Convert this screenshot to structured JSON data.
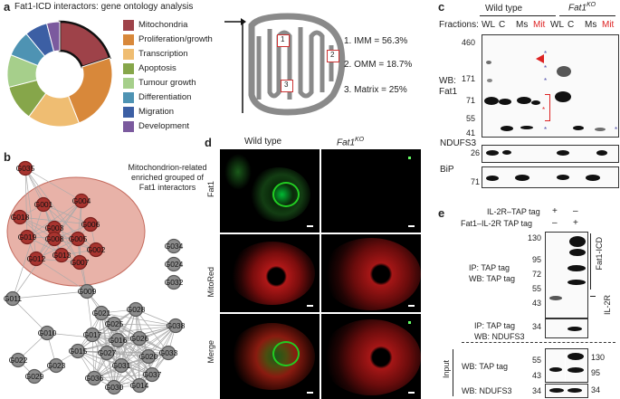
{
  "panel_a": {
    "label": "a",
    "title": "Fat1-ICD interactors: gene ontology analysis",
    "chart_data": {
      "type": "pie",
      "categories": [
        "Mitochondria",
        "Proliferation/growth",
        "Transcription",
        "Apoptosis",
        "Tumour growth",
        "Differentiation",
        "Migration",
        "Development"
      ],
      "values": [
        20,
        24,
        16,
        11,
        10,
        8,
        7,
        4
      ],
      "highlighted": "Mitochondria",
      "colors": [
        "#9e4249",
        "#d8883a",
        "#efbd72",
        "#86a64a",
        "#a6cf8b",
        "#4e93b3",
        "#3c5fa4",
        "#7b5a9e"
      ]
    },
    "legend": [
      {
        "label": "Mitochondria",
        "color": "#9e4249"
      },
      {
        "label": "Proliferation/growth",
        "color": "#d8883a"
      },
      {
        "label": "Transcription",
        "color": "#efbd72"
      },
      {
        "label": "Apoptosis",
        "color": "#86a64a"
      },
      {
        "label": "Tumour growth",
        "color": "#a6cf8b"
      },
      {
        "label": "Differentiation",
        "color": "#4e93b3"
      },
      {
        "label": "Migration",
        "color": "#3c5fa4"
      },
      {
        "label": "Development",
        "color": "#7b5a9e"
      }
    ],
    "mito_boxes": [
      "1",
      "2",
      "3"
    ],
    "mito_stats": [
      "1. IMM = 56.3%",
      "2. OMM = 18.7%",
      "3. Matrix = 25%"
    ]
  },
  "panel_b": {
    "label": "b",
    "cluster_label_1": "Mitochondrion-related",
    "cluster_label_2": "enriched grouped of",
    "cluster_label_3": "Fat1 interactors",
    "nodes_red": [
      "G035",
      "G001",
      "G004",
      "G018",
      "G003",
      "G006",
      "G019",
      "G008",
      "G005",
      "G002",
      "G012",
      "G013",
      "G007"
    ],
    "nodes_gray": [
      "G034",
      "G024",
      "G032",
      "G011",
      "G009",
      "G010",
      "G022",
      "G023",
      "G029",
      "G028",
      "G021",
      "G025",
      "G038",
      "G017",
      "G016",
      "G026",
      "G015",
      "G027",
      "G020",
      "G033",
      "G031",
      "G037",
      "G036",
      "G030",
      "G014"
    ]
  },
  "panel_d": {
    "label": "d",
    "col_wt": "Wild type",
    "col_ko": "Fat1",
    "col_ko_sup": "KO",
    "rows": [
      "Fat1",
      "MitoRed",
      "Merge"
    ]
  },
  "panel_c": {
    "label": "c",
    "wt": "Wild type",
    "ko": "Fat1",
    "ko_sup": "KO",
    "fractions_label": "Fractions:",
    "lanes": [
      "WL",
      "C",
      "Ms",
      "Mit",
      "WL",
      "C",
      "Ms",
      "Mit"
    ],
    "lane_colors": [
      "#222",
      "#222",
      "#222",
      "#d22",
      "#222",
      "#222",
      "#222",
      "#d22"
    ],
    "mw_top": [
      "460",
      "171",
      "71",
      "55",
      "41"
    ],
    "wb_label_1": "WB:",
    "wb_label_2": "Fat1",
    "ndufs3": "NDUFS3",
    "ndufs3_mw": "26",
    "bip": "BiP",
    "bip_mw": "71"
  },
  "panel_e": {
    "label": "e",
    "row1_label": "IL-2R–TAP tag",
    "row1_vals": [
      "+",
      "–"
    ],
    "row2_label": "Fat1–IL-2R TAP tag",
    "row2_vals": [
      "–",
      "+"
    ],
    "mw_top": [
      "130",
      "95",
      "72",
      "55",
      "43"
    ],
    "ip_label": "IP: TAP tag",
    "wb_tap": "WB: TAP tag",
    "fat1_icd": "Fat1-ICD",
    "il2r": "IL-2R",
    "ip2": "IP: TAP tag",
    "wb2": "WB: NDUFS3",
    "mw_34": "34",
    "input": "Input",
    "in_wb_tap": "WB: TAP tag",
    "in_wb_nd": "WB: NDUFS3",
    "in_mw_left": [
      "55",
      "43"
    ],
    "in_mw_right": [
      "130",
      "95"
    ],
    "in_mw_nd": "34"
  }
}
